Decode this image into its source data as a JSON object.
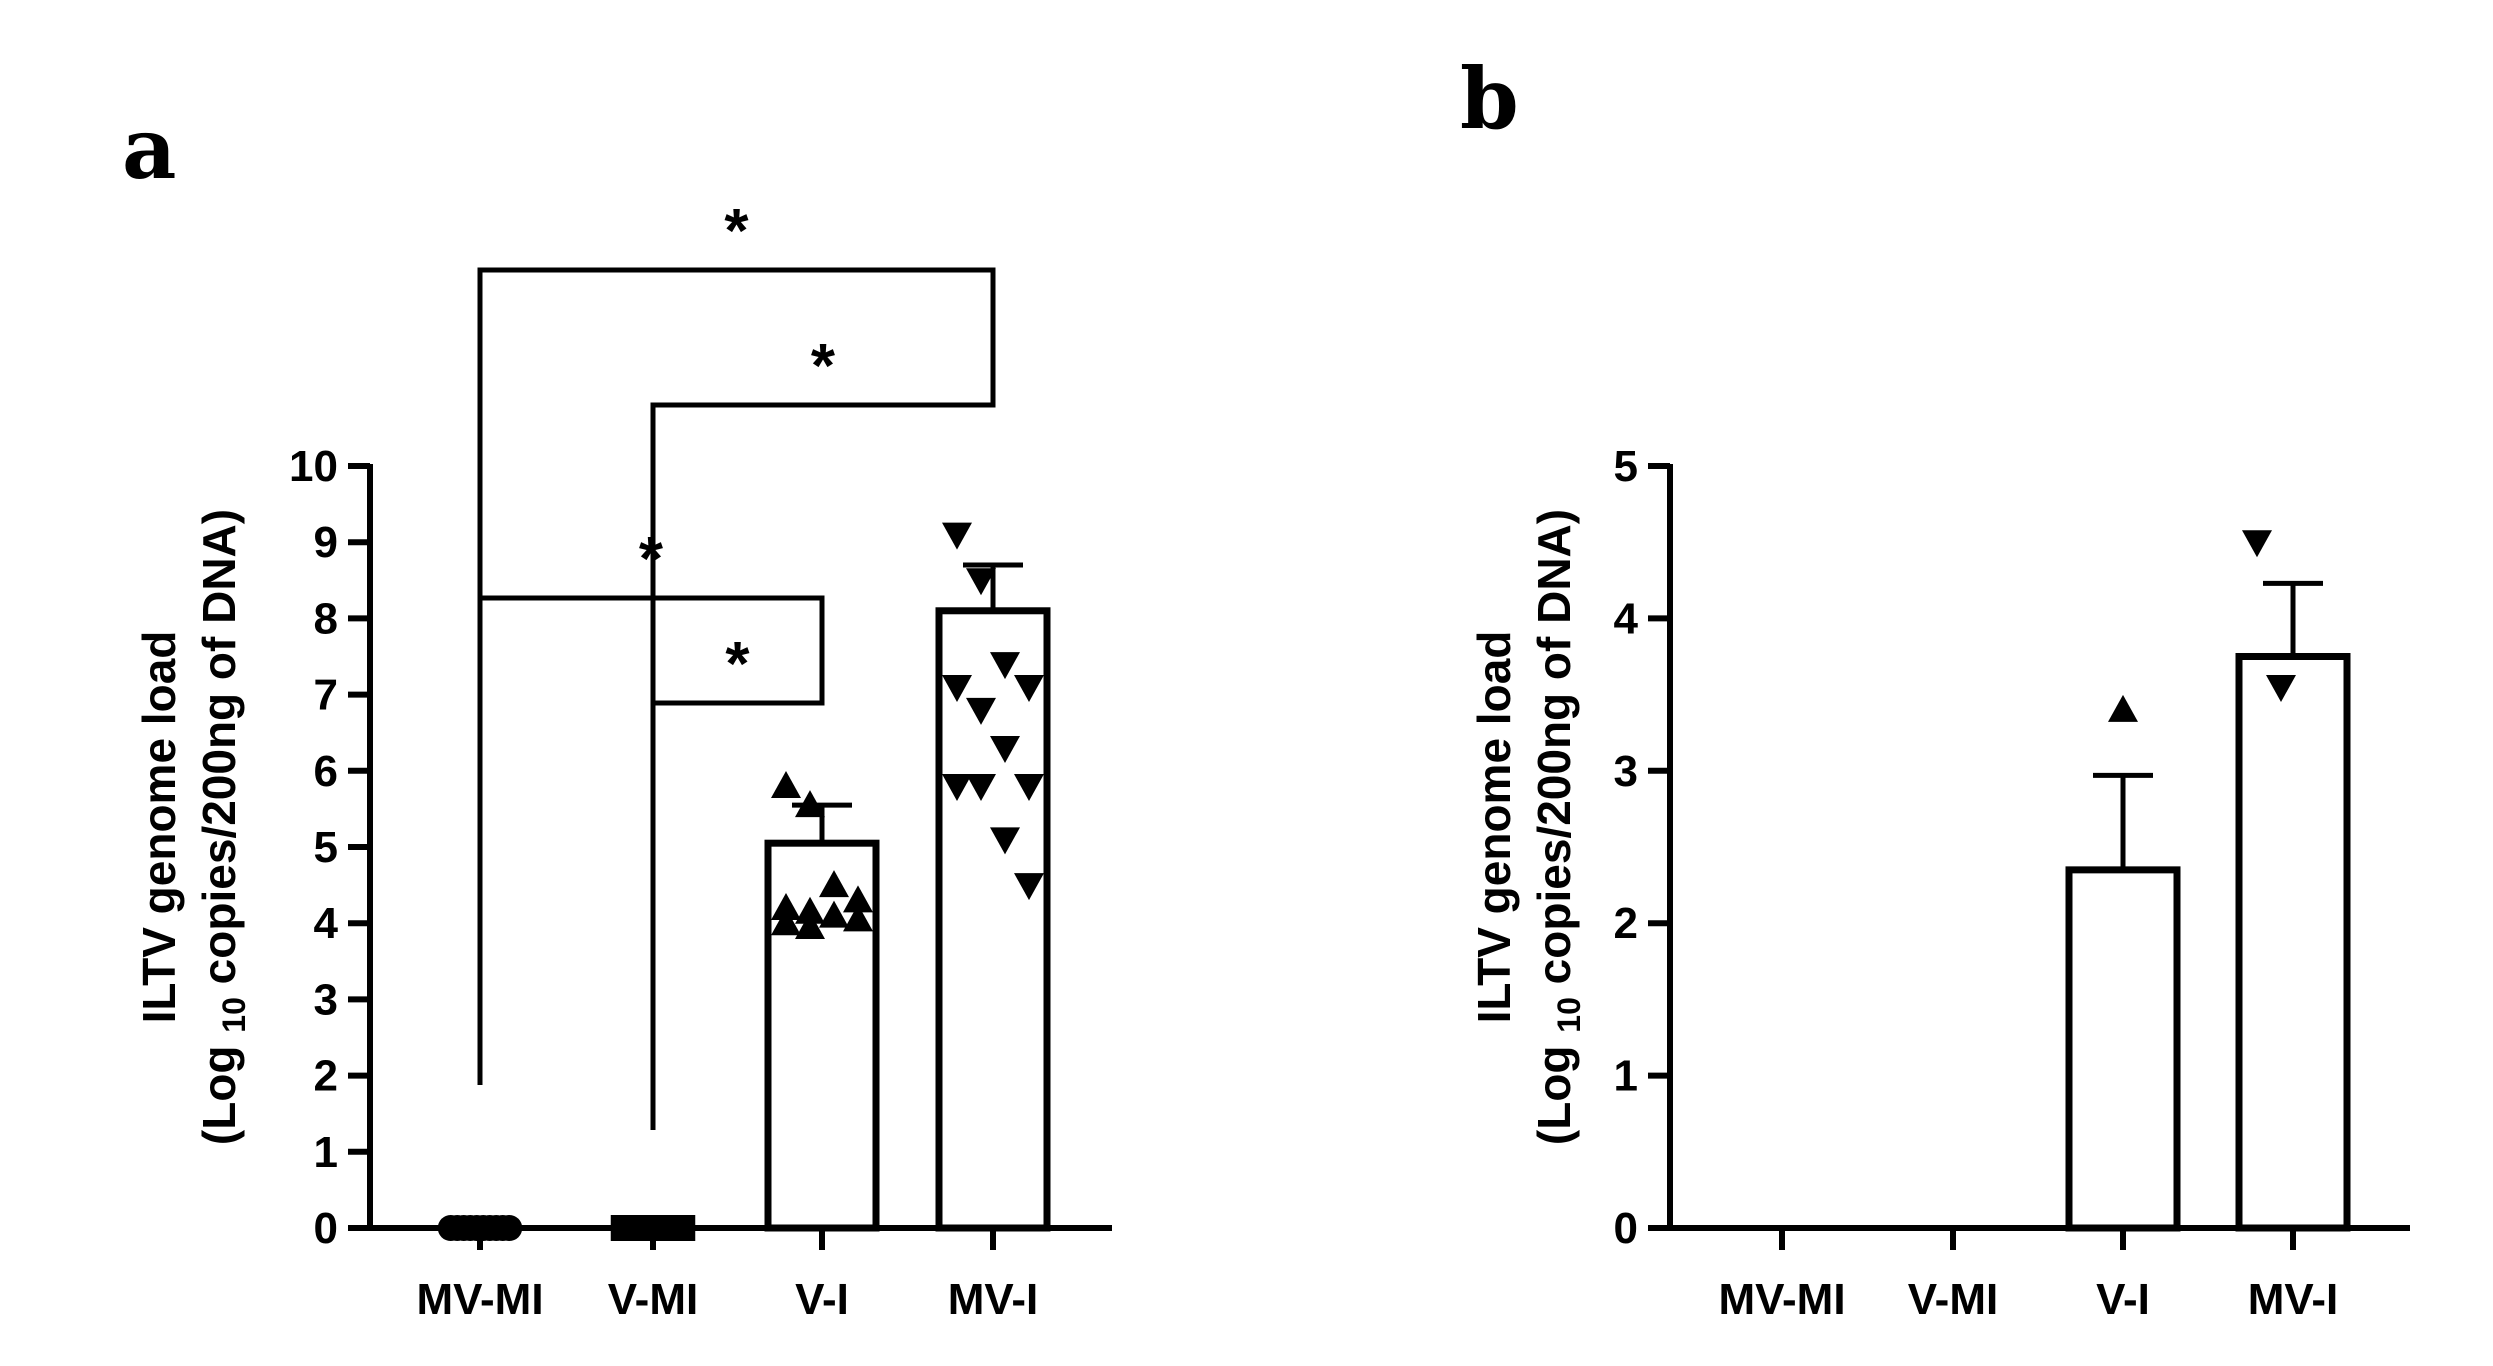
{
  "chart_data": [
    {
      "panel": "a",
      "type": "bar",
      "categories": [
        "MV-MI",
        "V-MI",
        "V-I",
        "MV-I"
      ],
      "values": [
        0,
        0,
        5.05,
        8.1
      ],
      "errors": [
        0,
        0,
        0.5,
        0.6
      ],
      "ylim": [
        0,
        10
      ],
      "yticks": [
        "0",
        "1",
        "2",
        "3",
        "4",
        "5",
        "6",
        "7",
        "8",
        "9",
        "10"
      ],
      "ylabel": {
        "line1": "ILTV genome load",
        "line2_pre": "(Log",
        "line2_sub": "10",
        "line2_post": "copies/200ng of DNA)"
      },
      "points": [
        {
          "category": "MV-MI",
          "marker": "circle",
          "values": [
            0,
            0,
            0,
            0,
            0,
            0,
            0,
            0,
            0,
            0
          ]
        },
        {
          "category": "V-MI",
          "marker": "square",
          "values": [
            0,
            0,
            0,
            0,
            0,
            0,
            0,
            0,
            0,
            0
          ]
        },
        {
          "category": "V-I",
          "marker": "triangle-up",
          "values": [
            5.8,
            5.55,
            4.5,
            4.3,
            4.2,
            4.15,
            4.1,
            4.05,
            4.0,
            3.95
          ]
        },
        {
          "category": "MV-I",
          "marker": "triangle-down",
          "values": [
            9.1,
            8.5,
            7.4,
            7.1,
            7.1,
            6.8,
            6.3,
            5.8,
            5.8,
            5.8,
            5.1,
            4.5
          ]
        }
      ],
      "significance": [
        {
          "from": "MV-MI",
          "to": "MV-I",
          "label": "*"
        },
        {
          "from": "V-MI",
          "to": "MV-I",
          "label": "*"
        },
        {
          "from": "MV-MI",
          "to": "V-I",
          "label": "*"
        },
        {
          "from": "V-MI",
          "to": "V-I",
          "label": "*"
        }
      ]
    },
    {
      "panel": "b",
      "type": "bar",
      "categories": [
        "MV-MI",
        "V-MI",
        "V-I",
        "MV-I"
      ],
      "values": [
        0,
        0,
        2.35,
        3.75
      ],
      "errors": [
        0,
        0,
        0.62,
        0.48
      ],
      "ylim": [
        0,
        5
      ],
      "yticks": [
        "0",
        "1",
        "2",
        "3",
        "4",
        "5"
      ],
      "ylabel": {
        "line1": "ILTV genome load",
        "line2_pre": "(Log",
        "line2_sub": "10",
        "line2_post": "copies/200ng of DNA)"
      },
      "points": [
        {
          "category": "V-I",
          "marker": "triangle-up",
          "values": [
            3.4
          ]
        },
        {
          "category": "MV-I",
          "marker": "triangle-down",
          "values": [
            4.5,
            3.55
          ]
        }
      ],
      "significance": []
    }
  ]
}
